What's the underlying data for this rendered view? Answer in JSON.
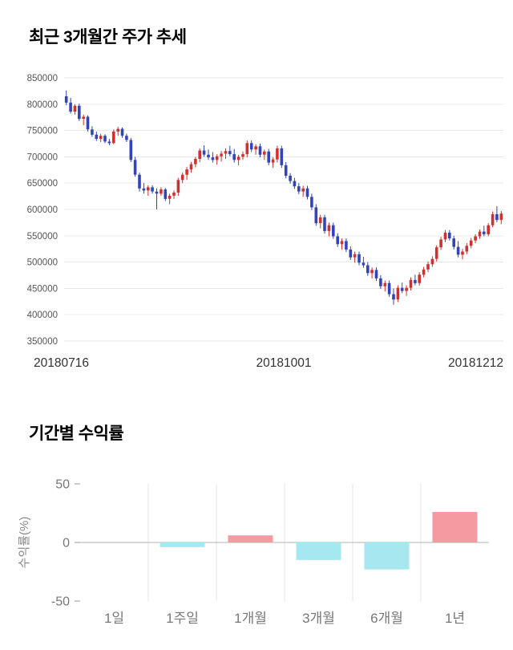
{
  "page": {
    "background": "#ffffff"
  },
  "price_chart": {
    "title": "최근 3개월간 주가 추세"
  },
  "returns_chart": {
    "title": "기간별 수익률"
  },
  "chart_data": [
    {
      "type": "candlestick",
      "title": "최근 3개월간 주가 추세",
      "ylim": [
        350000,
        850000
      ],
      "y_ticks": [
        850000,
        800000,
        750000,
        700000,
        650000,
        600000,
        550000,
        500000,
        450000,
        400000,
        350000
      ],
      "x_tick_labels": [
        "20180716",
        "20181001",
        "20181212"
      ],
      "grid": "horizontal",
      "legend": "none",
      "colors": {
        "up": "#d13030",
        "down": "#3344bb",
        "grid": "#e8e8e8",
        "y_tick_text": "#555555",
        "x_tick_text": "#333333"
      },
      "candle_format": [
        "open",
        "high",
        "low",
        "close"
      ],
      "candles": [
        [
          815000,
          826000,
          798000,
          803000
        ],
        [
          803000,
          812000,
          782000,
          786000
        ],
        [
          786000,
          800000,
          780000,
          797000
        ],
        [
          797000,
          801000,
          768000,
          772000
        ],
        [
          772000,
          780000,
          760000,
          776000
        ],
        [
          776000,
          779000,
          748000,
          752000
        ],
        [
          752000,
          758000,
          738000,
          742000
        ],
        [
          742000,
          748000,
          730000,
          734000
        ],
        [
          734000,
          744000,
          728000,
          740000
        ],
        [
          740000,
          743000,
          726000,
          729000
        ],
        [
          729000,
          734000,
          722000,
          726000
        ],
        [
          726000,
          752000,
          724000,
          748000
        ],
        [
          748000,
          757000,
          740000,
          753000
        ],
        [
          753000,
          756000,
          736000,
          740000
        ],
        [
          740000,
          744000,
          728000,
          732000
        ],
        [
          732000,
          736000,
          690000,
          694000
        ],
        [
          694000,
          700000,
          662000,
          666000
        ],
        [
          666000,
          670000,
          634000,
          640000
        ],
        [
          640000,
          650000,
          630000,
          636000
        ],
        [
          636000,
          646000,
          626000,
          642000
        ],
        [
          642000,
          646000,
          630000,
          634000
        ],
        [
          634000,
          640000,
          600000,
          630000
        ],
        [
          630000,
          642000,
          626000,
          638000
        ],
        [
          638000,
          641000,
          616000,
          620000
        ],
        [
          620000,
          630000,
          610000,
          626000
        ],
        [
          626000,
          636000,
          620000,
          632000
        ],
        [
          632000,
          660000,
          626000,
          656000
        ],
        [
          656000,
          670000,
          650000,
          666000
        ],
        [
          666000,
          681000,
          656000,
          676000
        ],
        [
          676000,
          690000,
          670000,
          686000
        ],
        [
          686000,
          700000,
          680000,
          696000
        ],
        [
          696000,
          716000,
          690000,
          712000
        ],
        [
          712000,
          722000,
          700000,
          704000
        ],
        [
          704000,
          714000,
          694000,
          699000
        ],
        [
          699000,
          709000,
          689000,
          694000
        ],
        [
          694000,
          705000,
          685000,
          701000
        ],
        [
          701000,
          711000,
          691000,
          706000
        ],
        [
          706000,
          716000,
          696000,
          711000
        ],
        [
          711000,
          721000,
          701000,
          705000
        ],
        [
          705000,
          715000,
          689000,
          694000
        ],
        [
          694000,
          704000,
          684000,
          700000
        ],
        [
          700000,
          710000,
          694000,
          705000
        ],
        [
          705000,
          731000,
          699000,
          726000
        ],
        [
          726000,
          731000,
          709000,
          714000
        ],
        [
          714000,
          724000,
          704000,
          720000
        ],
        [
          720000,
          725000,
          699000,
          704000
        ],
        [
          704000,
          714000,
          694000,
          710000
        ],
        [
          710000,
          715000,
          684000,
          689000
        ],
        [
          689000,
          699000,
          679000,
          695000
        ],
        [
          695000,
          721000,
          689000,
          716000
        ],
        [
          716000,
          721000,
          679000,
          684000
        ],
        [
          684000,
          690000,
          659000,
          664000
        ],
        [
          664000,
          669000,
          649000,
          654000
        ],
        [
          654000,
          660000,
          639000,
          644000
        ],
        [
          644000,
          650000,
          629000,
          634000
        ],
        [
          634000,
          645000,
          624000,
          640000
        ],
        [
          640000,
          645000,
          619000,
          624000
        ],
        [
          624000,
          630000,
          599000,
          604000
        ],
        [
          604000,
          610000,
          569000,
          574000
        ],
        [
          574000,
          590000,
          564000,
          585000
        ],
        [
          585000,
          590000,
          554000,
          559000
        ],
        [
          559000,
          575000,
          549000,
          570000
        ],
        [
          570000,
          575000,
          544000,
          549000
        ],
        [
          549000,
          555000,
          529000,
          534000
        ],
        [
          534000,
          545000,
          524000,
          540000
        ],
        [
          540000,
          545000,
          519000,
          524000
        ],
        [
          524000,
          530000,
          504000,
          509000
        ],
        [
          509000,
          520000,
          499000,
          515000
        ],
        [
          515000,
          520000,
          494000,
          499000
        ],
        [
          499000,
          510000,
          489000,
          494000
        ],
        [
          494000,
          500000,
          474000,
          479000
        ],
        [
          479000,
          490000,
          469000,
          485000
        ],
        [
          485000,
          490000,
          464000,
          469000
        ],
        [
          469000,
          475000,
          449000,
          454000
        ],
        [
          454000,
          465000,
          444000,
          460000
        ],
        [
          460000,
          465000,
          434000,
          439000
        ],
        [
          439000,
          450000,
          419000,
          429000
        ],
        [
          429000,
          456000,
          424000,
          451000
        ],
        [
          451000,
          461000,
          441000,
          445000
        ],
        [
          445000,
          456000,
          436000,
          451000
        ],
        [
          451000,
          471000,
          446000,
          466000
        ],
        [
          466000,
          476000,
          456000,
          460000
        ],
        [
          460000,
          481000,
          455000,
          476000
        ],
        [
          476000,
          491000,
          471000,
          486000
        ],
        [
          486000,
          501000,
          481000,
          496000
        ],
        [
          496000,
          511000,
          491000,
          506000
        ],
        [
          506000,
          532000,
          501000,
          528000
        ],
        [
          528000,
          548000,
          523000,
          543000
        ],
        [
          543000,
          561000,
          538000,
          556000
        ],
        [
          556000,
          561000,
          541000,
          545000
        ],
        [
          545000,
          550000,
          524000,
          529000
        ],
        [
          529000,
          540000,
          509000,
          514000
        ],
        [
          514000,
          525000,
          505000,
          520000
        ],
        [
          520000,
          536000,
          515000,
          531000
        ],
        [
          531000,
          546000,
          526000,
          541000
        ],
        [
          541000,
          553000,
          536000,
          549000
        ],
        [
          549000,
          562000,
          544000,
          558000
        ],
        [
          558000,
          569000,
          549000,
          553000
        ],
        [
          553000,
          574000,
          549000,
          570000
        ],
        [
          570000,
          596000,
          566000,
          591000
        ],
        [
          591000,
          606000,
          576000,
          580000
        ],
        [
          580000,
          597000,
          572000,
          592000
        ]
      ]
    },
    {
      "type": "bar",
      "title": "기간별 수익률",
      "ylabel": "수익률(%)",
      "categories": [
        "1일",
        "1주일",
        "1개월",
        "3개월",
        "6개월",
        "1년"
      ],
      "values": [
        0,
        -4,
        6,
        -15,
        -23,
        26
      ],
      "ylim": [
        -50,
        50
      ],
      "y_ticks": [
        50,
        0,
        -50
      ],
      "grid": "vertical-separators",
      "legend": "none",
      "colors": {
        "positive": "#f59aa0",
        "negative": "#a7e7f0",
        "grid": "#e5e5e5",
        "zero_line": "#b3b3b3",
        "tick_text": "#777777",
        "label_text": "#888888"
      }
    }
  ]
}
